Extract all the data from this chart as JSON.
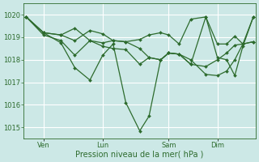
{
  "bg_color": "#cce8e6",
  "grid_color": "#ffffff",
  "line_color": "#2d6b2d",
  "marker_color": "#2d6b2d",
  "xlabel": "Pression niveau de la mer( hPa )",
  "xlabel_color": "#2d6b2d",
  "tick_color": "#2d6b2d",
  "ylim": [
    1014.5,
    1020.5
  ],
  "yticks": [
    1015,
    1016,
    1017,
    1018,
    1019,
    1020
  ],
  "xtick_labels": [
    "Ven",
    "Lun",
    "Sam",
    "Dim"
  ],
  "vline_positions": [
    0.085,
    0.34,
    0.625,
    0.835
  ],
  "series": [
    {
      "x": [
        0.01,
        0.085,
        0.16,
        0.22,
        0.285,
        0.34,
        0.385,
        0.44,
        0.5,
        0.54,
        0.59,
        0.625,
        0.67,
        0.72,
        0.785,
        0.835,
        0.875,
        0.91,
        0.945,
        0.99
      ],
      "y": [
        1019.9,
        1019.2,
        1018.75,
        1017.65,
        1017.1,
        1018.2,
        1018.7,
        1016.1,
        1014.85,
        1015.5,
        1018.0,
        1018.3,
        1018.25,
        1017.8,
        1019.9,
        1018.1,
        1018.0,
        1017.3,
        1018.6,
        1019.9
      ]
    },
    {
      "x": [
        0.01,
        0.085,
        0.16,
        0.22,
        0.285,
        0.34,
        0.385,
        0.44,
        0.5,
        0.54,
        0.59,
        0.625,
        0.67,
        0.72,
        0.785,
        0.835,
        0.875,
        0.91,
        0.945,
        0.99
      ],
      "y": [
        1019.9,
        1019.2,
        1019.1,
        1019.4,
        1018.85,
        1018.75,
        1018.85,
        1018.8,
        1018.5,
        1018.1,
        1018.0,
        1018.3,
        1018.25,
        1017.8,
        1017.7,
        1018.0,
        1018.3,
        1018.65,
        1018.7,
        1018.8
      ]
    },
    {
      "x": [
        0.01,
        0.085,
        0.16,
        0.22,
        0.285,
        0.34,
        0.385,
        0.44,
        0.5,
        0.54,
        0.59,
        0.625,
        0.67,
        0.72,
        0.785,
        0.835,
        0.875,
        0.91,
        0.945,
        0.99
      ],
      "y": [
        1019.9,
        1019.2,
        1019.1,
        1018.85,
        1019.3,
        1019.15,
        1018.85,
        1018.8,
        1018.9,
        1019.1,
        1019.2,
        1019.1,
        1018.7,
        1019.8,
        1019.9,
        1018.7,
        1018.7,
        1019.05,
        1018.7,
        1019.9
      ]
    },
    {
      "x": [
        0.01,
        0.085,
        0.16,
        0.22,
        0.285,
        0.34,
        0.385,
        0.44,
        0.5,
        0.54,
        0.59,
        0.625,
        0.67,
        0.72,
        0.785,
        0.835,
        0.875,
        0.91,
        0.945,
        0.99
      ],
      "y": [
        1019.9,
        1019.1,
        1018.85,
        1018.2,
        1018.85,
        1018.6,
        1018.5,
        1018.45,
        1017.8,
        1018.1,
        1018.0,
        1018.3,
        1018.25,
        1018.0,
        1017.35,
        1017.3,
        1017.5,
        1018.0,
        1018.7,
        1018.8
      ]
    }
  ]
}
